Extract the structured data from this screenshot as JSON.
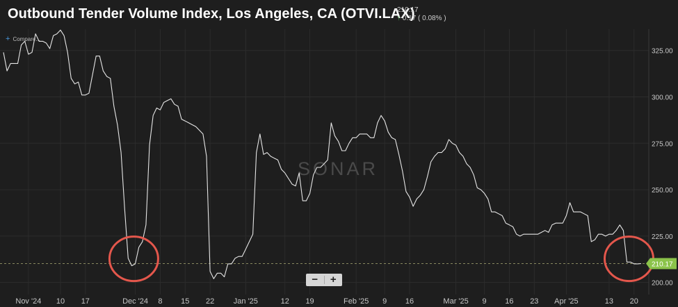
{
  "header": {
    "title": "Outbound Tender Volume Index, Los Angeles, CA (OTVI.LAX)",
    "last_value": "210.17",
    "change": "0.17 ( 0.08% )"
  },
  "toolbar": {
    "compare_label": "Compare...",
    "zoom_out_label": "−",
    "zoom_in_label": "+"
  },
  "watermark": "SONAR",
  "colors": {
    "background": "#1e1e1e",
    "line": "#e6e6e6",
    "current_value": "#8bc34a",
    "highlight_circle": "#e4574c"
  },
  "chart_data": {
    "type": "line",
    "title": "Outbound Tender Volume Index, Los Angeles, CA (OTVI.LAX)",
    "xlabel": "",
    "ylabel": "",
    "ylim": [
      193.5,
      336.5
    ],
    "yticks": [
      200,
      225,
      250,
      275,
      300,
      325
    ],
    "ytick_labels": [
      "200.00",
      "225.00",
      "250.00",
      "275.00",
      "300.00",
      "325.00"
    ],
    "xlim": [
      "2024-10-25",
      "2025-04-22"
    ],
    "xticks": [
      {
        "date": "2024-11-01",
        "label": "Nov '24"
      },
      {
        "date": "2024-11-10",
        "label": "10"
      },
      {
        "date": "2024-11-17",
        "label": "17"
      },
      {
        "date": "2024-12-01",
        "label": "Dec '24"
      },
      {
        "date": "2024-12-08",
        "label": "8"
      },
      {
        "date": "2024-12-15",
        "label": "15"
      },
      {
        "date": "2024-12-22",
        "label": "22"
      },
      {
        "date": "2025-01-01",
        "label": "Jan '25"
      },
      {
        "date": "2025-01-12",
        "label": "12"
      },
      {
        "date": "2025-01-19",
        "label": "19"
      },
      {
        "date": "2025-02-01",
        "label": "Feb '25"
      },
      {
        "date": "2025-02-09",
        "label": "9"
      },
      {
        "date": "2025-02-16",
        "label": "16"
      },
      {
        "date": "2025-03-01",
        "label": "Mar '25"
      },
      {
        "date": "2025-03-09",
        "label": "9"
      },
      {
        "date": "2025-03-16",
        "label": "16"
      },
      {
        "date": "2025-03-23",
        "label": "23"
      },
      {
        "date": "2025-04-01",
        "label": "Apr '25"
      },
      {
        "date": "2025-04-13",
        "label": "13"
      },
      {
        "date": "2025-04-20",
        "label": "20"
      }
    ],
    "current_value": 210.17,
    "current_label": "210.17",
    "grid": true,
    "series": [
      {
        "name": "OTVI.LAX",
        "points": [
          [
            "2024-10-25",
            324
          ],
          [
            "2024-10-26",
            314
          ],
          [
            "2024-10-27",
            318
          ],
          [
            "2024-10-28",
            318
          ],
          [
            "2024-10-29",
            318
          ],
          [
            "2024-10-30",
            328
          ],
          [
            "2024-10-31",
            330
          ],
          [
            "2024-11-01",
            323
          ],
          [
            "2024-11-02",
            324
          ],
          [
            "2024-11-03",
            334
          ],
          [
            "2024-11-04",
            330
          ],
          [
            "2024-11-05",
            330
          ],
          [
            "2024-11-06",
            329
          ],
          [
            "2024-11-07",
            326
          ],
          [
            "2024-11-08",
            333
          ],
          [
            "2024-11-09",
            334
          ],
          [
            "2024-11-10",
            336
          ],
          [
            "2024-11-11",
            333
          ],
          [
            "2024-11-12",
            324
          ],
          [
            "2024-11-13",
            310
          ],
          [
            "2024-11-14",
            307
          ],
          [
            "2024-11-15",
            308
          ],
          [
            "2024-11-16",
            301
          ],
          [
            "2024-11-17",
            301
          ],
          [
            "2024-11-18",
            302
          ],
          [
            "2024-11-19",
            312
          ],
          [
            "2024-11-20",
            322
          ],
          [
            "2024-11-21",
            322
          ],
          [
            "2024-11-22",
            314
          ],
          [
            "2024-11-23",
            311
          ],
          [
            "2024-11-24",
            310
          ],
          [
            "2024-11-25",
            295
          ],
          [
            "2024-11-26",
            285
          ],
          [
            "2024-11-27",
            270
          ],
          [
            "2024-11-28",
            240
          ],
          [
            "2024-11-29",
            213
          ],
          [
            "2024-11-30",
            209
          ],
          [
            "2024-12-01",
            210
          ],
          [
            "2024-12-02",
            219
          ],
          [
            "2024-12-03",
            222
          ],
          [
            "2024-12-04",
            231
          ],
          [
            "2024-12-05",
            274
          ],
          [
            "2024-12-06",
            290
          ],
          [
            "2024-12-07",
            294
          ],
          [
            "2024-12-08",
            293
          ],
          [
            "2024-12-09",
            297
          ],
          [
            "2024-12-10",
            298
          ],
          [
            "2024-12-11",
            299
          ],
          [
            "2024-12-12",
            296
          ],
          [
            "2024-12-13",
            295
          ],
          [
            "2024-12-14",
            288
          ],
          [
            "2024-12-15",
            287
          ],
          [
            "2024-12-16",
            286
          ],
          [
            "2024-12-17",
            285
          ],
          [
            "2024-12-18",
            284
          ],
          [
            "2024-12-19",
            282
          ],
          [
            "2024-12-20",
            280
          ],
          [
            "2024-12-21",
            268
          ],
          [
            "2024-12-22",
            206
          ],
          [
            "2024-12-23",
            202
          ],
          [
            "2024-12-24",
            205
          ],
          [
            "2024-12-25",
            205
          ],
          [
            "2024-12-26",
            203
          ],
          [
            "2024-12-27",
            210
          ],
          [
            "2024-12-28",
            210
          ],
          [
            "2024-12-29",
            213
          ],
          [
            "2024-12-30",
            214
          ],
          [
            "2024-12-31",
            214
          ],
          [
            "2025-01-01",
            218
          ],
          [
            "2025-01-02",
            222
          ],
          [
            "2025-01-03",
            226
          ],
          [
            "2025-01-04",
            270
          ],
          [
            "2025-01-05",
            280
          ],
          [
            "2025-01-06",
            269
          ],
          [
            "2025-01-07",
            270
          ],
          [
            "2025-01-08",
            268
          ],
          [
            "2025-01-09",
            267
          ],
          [
            "2025-01-10",
            266
          ],
          [
            "2025-01-11",
            261
          ],
          [
            "2025-01-12",
            259
          ],
          [
            "2025-01-13",
            256
          ],
          [
            "2025-01-14",
            253
          ],
          [
            "2025-01-15",
            252
          ],
          [
            "2025-01-16",
            259
          ],
          [
            "2025-01-17",
            244
          ],
          [
            "2025-01-18",
            244
          ],
          [
            "2025-01-19",
            248
          ],
          [
            "2025-01-20",
            258
          ],
          [
            "2025-01-21",
            262
          ],
          [
            "2025-01-22",
            262
          ],
          [
            "2025-01-23",
            264
          ],
          [
            "2025-01-24",
            266
          ],
          [
            "2025-01-25",
            286
          ],
          [
            "2025-01-26",
            279
          ],
          [
            "2025-01-27",
            276
          ],
          [
            "2025-01-28",
            271
          ],
          [
            "2025-01-29",
            271
          ],
          [
            "2025-01-30",
            275
          ],
          [
            "2025-01-31",
            278
          ],
          [
            "2025-02-01",
            278
          ],
          [
            "2025-02-02",
            280
          ],
          [
            "2025-02-03",
            280
          ],
          [
            "2025-02-04",
            280
          ],
          [
            "2025-02-05",
            278
          ],
          [
            "2025-02-06",
            278
          ],
          [
            "2025-02-07",
            286
          ],
          [
            "2025-02-08",
            290
          ],
          [
            "2025-02-09",
            287
          ],
          [
            "2025-02-10",
            281
          ],
          [
            "2025-02-11",
            278
          ],
          [
            "2025-02-12",
            277
          ],
          [
            "2025-02-13",
            269
          ],
          [
            "2025-02-14",
            260
          ],
          [
            "2025-02-15",
            249
          ],
          [
            "2025-02-16",
            246
          ],
          [
            "2025-02-17",
            241
          ],
          [
            "2025-02-18",
            245
          ],
          [
            "2025-02-19",
            247
          ],
          [
            "2025-02-20",
            250
          ],
          [
            "2025-02-21",
            257
          ],
          [
            "2025-02-22",
            265
          ],
          [
            "2025-02-23",
            268
          ],
          [
            "2025-02-24",
            270
          ],
          [
            "2025-02-25",
            270
          ],
          [
            "2025-02-26",
            272
          ],
          [
            "2025-02-27",
            277
          ],
          [
            "2025-02-28",
            275
          ],
          [
            "2025-03-01",
            274
          ],
          [
            "2025-03-02",
            270
          ],
          [
            "2025-03-03",
            268
          ],
          [
            "2025-03-04",
            264
          ],
          [
            "2025-03-05",
            262
          ],
          [
            "2025-03-06",
            258
          ],
          [
            "2025-03-07",
            251
          ],
          [
            "2025-03-08",
            250
          ],
          [
            "2025-03-09",
            248
          ],
          [
            "2025-03-10",
            245
          ],
          [
            "2025-03-11",
            238
          ],
          [
            "2025-03-12",
            238
          ],
          [
            "2025-03-13",
            237
          ],
          [
            "2025-03-14",
            236
          ],
          [
            "2025-03-15",
            232
          ],
          [
            "2025-03-16",
            231
          ],
          [
            "2025-03-17",
            230
          ],
          [
            "2025-03-18",
            226
          ],
          [
            "2025-03-19",
            225
          ],
          [
            "2025-03-20",
            226
          ],
          [
            "2025-03-21",
            226
          ],
          [
            "2025-03-22",
            226
          ],
          [
            "2025-03-23",
            226
          ],
          [
            "2025-03-24",
            226
          ],
          [
            "2025-03-25",
            227
          ],
          [
            "2025-03-26",
            228
          ],
          [
            "2025-03-27",
            227
          ],
          [
            "2025-03-28",
            231
          ],
          [
            "2025-03-29",
            232
          ],
          [
            "2025-03-30",
            232
          ],
          [
            "2025-03-31",
            232
          ],
          [
            "2025-04-01",
            236
          ],
          [
            "2025-04-02",
            243
          ],
          [
            "2025-04-03",
            238
          ],
          [
            "2025-04-04",
            238
          ],
          [
            "2025-04-05",
            238
          ],
          [
            "2025-04-06",
            237
          ],
          [
            "2025-04-07",
            236
          ],
          [
            "2025-04-08",
            222
          ],
          [
            "2025-04-09",
            223
          ],
          [
            "2025-04-10",
            226
          ],
          [
            "2025-04-11",
            226
          ],
          [
            "2025-04-12",
            225
          ],
          [
            "2025-04-13",
            226
          ],
          [
            "2025-04-14",
            226
          ],
          [
            "2025-04-15",
            228
          ],
          [
            "2025-04-16",
            231
          ],
          [
            "2025-04-17",
            228
          ],
          [
            "2025-04-18",
            211
          ],
          [
            "2025-04-19",
            211
          ],
          [
            "2025-04-20",
            210
          ],
          [
            "2025-04-21",
            210
          ],
          [
            "2025-04-22",
            210.17
          ]
        ]
      }
    ],
    "highlights": [
      {
        "date": "2024-11-30",
        "value": 212
      },
      {
        "date": "2025-04-18",
        "value": 212
      }
    ]
  }
}
